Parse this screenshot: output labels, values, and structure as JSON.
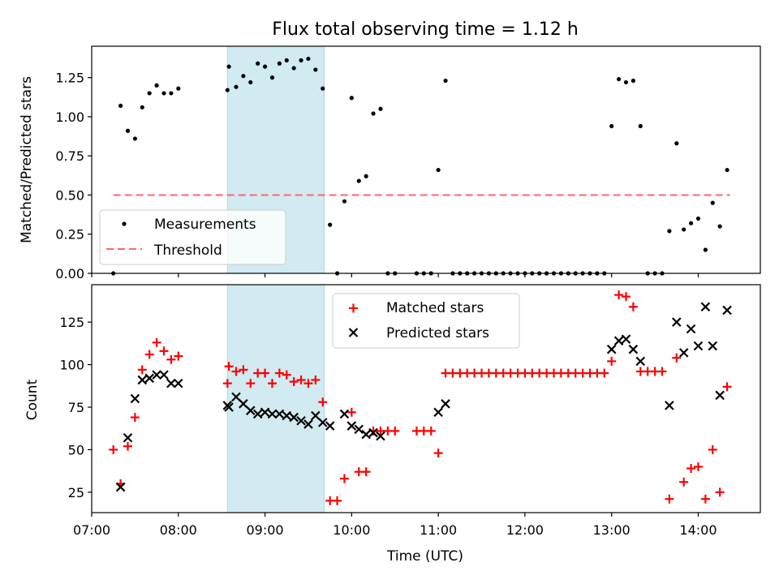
{
  "chart_data": [
    {
      "type": "scatter",
      "title": "Flux total observing time = 1.12 h",
      "ylabel": "Matched/Predicted stars",
      "xlabel": "",
      "xlim": [
        "07:00",
        "14:43"
      ],
      "ylim": [
        0,
        1.45
      ],
      "y_ticks": [
        "0.00",
        "0.25",
        "0.50",
        "0.75",
        "1.00",
        "1.25"
      ],
      "shaded_interval": [
        "08:34",
        "09:41"
      ],
      "legend": [
        "Measurements",
        "Threshold"
      ],
      "legend_position": "lower-left",
      "threshold": {
        "name": "Threshold",
        "value": 0.5,
        "x_range": [
          "07:15",
          "14:22"
        ]
      },
      "series": [
        {
          "name": "Measurements",
          "points": [
            [
              "07:15",
              0.0
            ],
            [
              "07:20",
              1.07
            ],
            [
              "07:25",
              0.91
            ],
            [
              "07:30",
              0.86
            ],
            [
              "07:35",
              1.06
            ],
            [
              "07:40",
              1.15
            ],
            [
              "07:45",
              1.2
            ],
            [
              "07:50",
              1.15
            ],
            [
              "07:55",
              1.15
            ],
            [
              "08:00",
              1.18
            ],
            [
              "08:34",
              1.17
            ],
            [
              "08:35",
              1.32
            ],
            [
              "08:40",
              1.19
            ],
            [
              "08:45",
              1.26
            ],
            [
              "08:50",
              1.22
            ],
            [
              "08:55",
              1.34
            ],
            [
              "09:00",
              1.32
            ],
            [
              "09:05",
              1.25
            ],
            [
              "09:10",
              1.34
            ],
            [
              "09:15",
              1.36
            ],
            [
              "09:20",
              1.31
            ],
            [
              "09:25",
              1.36
            ],
            [
              "09:30",
              1.37
            ],
            [
              "09:35",
              1.3
            ],
            [
              "09:40",
              1.18
            ],
            [
              "09:45",
              0.31
            ],
            [
              "09:50",
              0.0
            ],
            [
              "09:55",
              0.46
            ],
            [
              "10:00",
              1.12
            ],
            [
              "10:05",
              0.59
            ],
            [
              "10:10",
              0.62
            ],
            [
              "10:15",
              1.02
            ],
            [
              "10:20",
              1.05
            ],
            [
              "10:25",
              0.0
            ],
            [
              "10:30",
              0.0
            ],
            [
              "10:45",
              0.0
            ],
            [
              "10:50",
              0.0
            ],
            [
              "10:55",
              0.0
            ],
            [
              "11:00",
              0.66
            ],
            [
              "11:05",
              1.23
            ],
            [
              "11:10",
              0.0
            ],
            [
              "11:15",
              0.0
            ],
            [
              "11:20",
              0.0
            ],
            [
              "11:25",
              0.0
            ],
            [
              "11:30",
              0.0
            ],
            [
              "11:35",
              0.0
            ],
            [
              "11:40",
              0.0
            ],
            [
              "11:45",
              0.0
            ],
            [
              "11:50",
              0.0
            ],
            [
              "11:55",
              0.0
            ],
            [
              "12:00",
              0.0
            ],
            [
              "12:05",
              0.0
            ],
            [
              "12:10",
              0.0
            ],
            [
              "12:15",
              0.0
            ],
            [
              "12:20",
              0.0
            ],
            [
              "12:25",
              0.0
            ],
            [
              "12:30",
              0.0
            ],
            [
              "12:35",
              0.0
            ],
            [
              "12:40",
              0.0
            ],
            [
              "12:45",
              0.0
            ],
            [
              "12:50",
              0.0
            ],
            [
              "12:55",
              0.0
            ],
            [
              "13:00",
              0.94
            ],
            [
              "13:05",
              1.24
            ],
            [
              "13:10",
              1.22
            ],
            [
              "13:15",
              1.23
            ],
            [
              "13:20",
              0.94
            ],
            [
              "13:25",
              0.0
            ],
            [
              "13:30",
              0.0
            ],
            [
              "13:35",
              0.0
            ],
            [
              "13:40",
              0.27
            ],
            [
              "13:45",
              0.83
            ],
            [
              "13:50",
              0.28
            ],
            [
              "13:55",
              0.32
            ],
            [
              "14:00",
              0.35
            ],
            [
              "14:05",
              0.15
            ],
            [
              "14:10",
              0.45
            ],
            [
              "14:15",
              0.3
            ],
            [
              "14:20",
              0.66
            ]
          ]
        }
      ]
    },
    {
      "type": "scatter",
      "title": "",
      "xlabel": "Time (UTC)",
      "ylabel": "Count",
      "xlim": [
        "07:00",
        "14:43"
      ],
      "ylim": [
        13,
        147
      ],
      "x_ticks": [
        "07:00",
        "08:00",
        "09:00",
        "10:00",
        "11:00",
        "12:00",
        "13:00",
        "14:00"
      ],
      "y_ticks": [
        "25",
        "50",
        "75",
        "100",
        "125"
      ],
      "shaded_interval": [
        "08:34",
        "09:41"
      ],
      "legend": [
        "Matched stars",
        "Predicted stars"
      ],
      "legend_position": "top-center",
      "series": [
        {
          "name": "Matched stars",
          "marker": "+",
          "color": "#ff0000",
          "points": [
            [
              "07:15",
              50
            ],
            [
              "07:20",
              30
            ],
            [
              "07:25",
              52
            ],
            [
              "07:30",
              69
            ],
            [
              "07:35",
              97
            ],
            [
              "07:40",
              106
            ],
            [
              "07:45",
              113
            ],
            [
              "07:50",
              108
            ],
            [
              "07:55",
              103
            ],
            [
              "08:00",
              105
            ],
            [
              "08:34",
              89
            ],
            [
              "08:35",
              99
            ],
            [
              "08:40",
              96
            ],
            [
              "08:45",
              97
            ],
            [
              "08:50",
              89
            ],
            [
              "08:55",
              95
            ],
            [
              "09:00",
              95
            ],
            [
              "09:05",
              89
            ],
            [
              "09:10",
              95
            ],
            [
              "09:15",
              94
            ],
            [
              "09:20",
              90
            ],
            [
              "09:25",
              91
            ],
            [
              "09:30",
              89
            ],
            [
              "09:35",
              91
            ],
            [
              "09:40",
              78
            ],
            [
              "09:45",
              20
            ],
            [
              "09:50",
              20
            ],
            [
              "09:55",
              33
            ],
            [
              "10:00",
              72
            ],
            [
              "10:05",
              37
            ],
            [
              "10:10",
              37
            ],
            [
              "10:15",
              61
            ],
            [
              "10:20",
              61
            ],
            [
              "10:25",
              61
            ],
            [
              "10:30",
              61
            ],
            [
              "10:45",
              61
            ],
            [
              "10:50",
              61
            ],
            [
              "10:55",
              61
            ],
            [
              "11:00",
              48
            ],
            [
              "11:05",
              95
            ],
            [
              "11:10",
              95
            ],
            [
              "11:15",
              95
            ],
            [
              "11:20",
              95
            ],
            [
              "11:25",
              95
            ],
            [
              "11:30",
              95
            ],
            [
              "11:35",
              95
            ],
            [
              "11:40",
              95
            ],
            [
              "11:45",
              95
            ],
            [
              "11:50",
              95
            ],
            [
              "11:55",
              95
            ],
            [
              "12:00",
              95
            ],
            [
              "12:05",
              95
            ],
            [
              "12:10",
              95
            ],
            [
              "12:15",
              95
            ],
            [
              "12:20",
              95
            ],
            [
              "12:25",
              95
            ],
            [
              "12:30",
              95
            ],
            [
              "12:35",
              95
            ],
            [
              "12:40",
              95
            ],
            [
              "12:45",
              95
            ],
            [
              "12:50",
              95
            ],
            [
              "12:55",
              95
            ],
            [
              "13:00",
              102
            ],
            [
              "13:05",
              141
            ],
            [
              "13:10",
              140
            ],
            [
              "13:15",
              134
            ],
            [
              "13:20",
              96
            ],
            [
              "13:25",
              96
            ],
            [
              "13:30",
              96
            ],
            [
              "13:35",
              96
            ],
            [
              "13:40",
              21
            ],
            [
              "13:45",
              104
            ],
            [
              "13:50",
              31
            ],
            [
              "13:55",
              39
            ],
            [
              "14:00",
              40
            ],
            [
              "14:05",
              21
            ],
            [
              "14:10",
              50
            ],
            [
              "14:15",
              25
            ],
            [
              "14:20",
              87
            ]
          ]
        },
        {
          "name": "Predicted stars",
          "marker": "x",
          "color": "#000000",
          "points": [
            [
              "07:20",
              28
            ],
            [
              "07:25",
              57
            ],
            [
              "07:30",
              80
            ],
            [
              "07:35",
              91
            ],
            [
              "07:40",
              92
            ],
            [
              "07:45",
              94
            ],
            [
              "07:50",
              94
            ],
            [
              "07:55",
              89
            ],
            [
              "08:00",
              89
            ],
            [
              "08:34",
              76
            ],
            [
              "08:35",
              75
            ],
            [
              "08:40",
              81
            ],
            [
              "08:45",
              77
            ],
            [
              "08:50",
              73
            ],
            [
              "08:55",
              71
            ],
            [
              "09:00",
              72
            ],
            [
              "09:05",
              71
            ],
            [
              "09:10",
              71
            ],
            [
              "09:15",
              70
            ],
            [
              "09:20",
              69
            ],
            [
              "09:25",
              67
            ],
            [
              "09:30",
              65
            ],
            [
              "09:35",
              70
            ],
            [
              "09:40",
              66
            ],
            [
              "09:45",
              64
            ],
            [
              "09:55",
              71
            ],
            [
              "10:00",
              64
            ],
            [
              "10:05",
              62
            ],
            [
              "10:10",
              59
            ],
            [
              "10:15",
              60
            ],
            [
              "10:20",
              58
            ],
            [
              "11:00",
              72
            ],
            [
              "11:05",
              77
            ],
            [
              "13:00",
              109
            ],
            [
              "13:05",
              114
            ],
            [
              "13:10",
              115
            ],
            [
              "13:15",
              109
            ],
            [
              "13:20",
              102
            ],
            [
              "13:40",
              76
            ],
            [
              "13:45",
              125
            ],
            [
              "13:50",
              107
            ],
            [
              "13:55",
              121
            ],
            [
              "14:00",
              111
            ],
            [
              "14:05",
              134
            ],
            [
              "14:10",
              111
            ],
            [
              "14:15",
              82
            ],
            [
              "14:20",
              132
            ]
          ]
        }
      ]
    }
  ]
}
